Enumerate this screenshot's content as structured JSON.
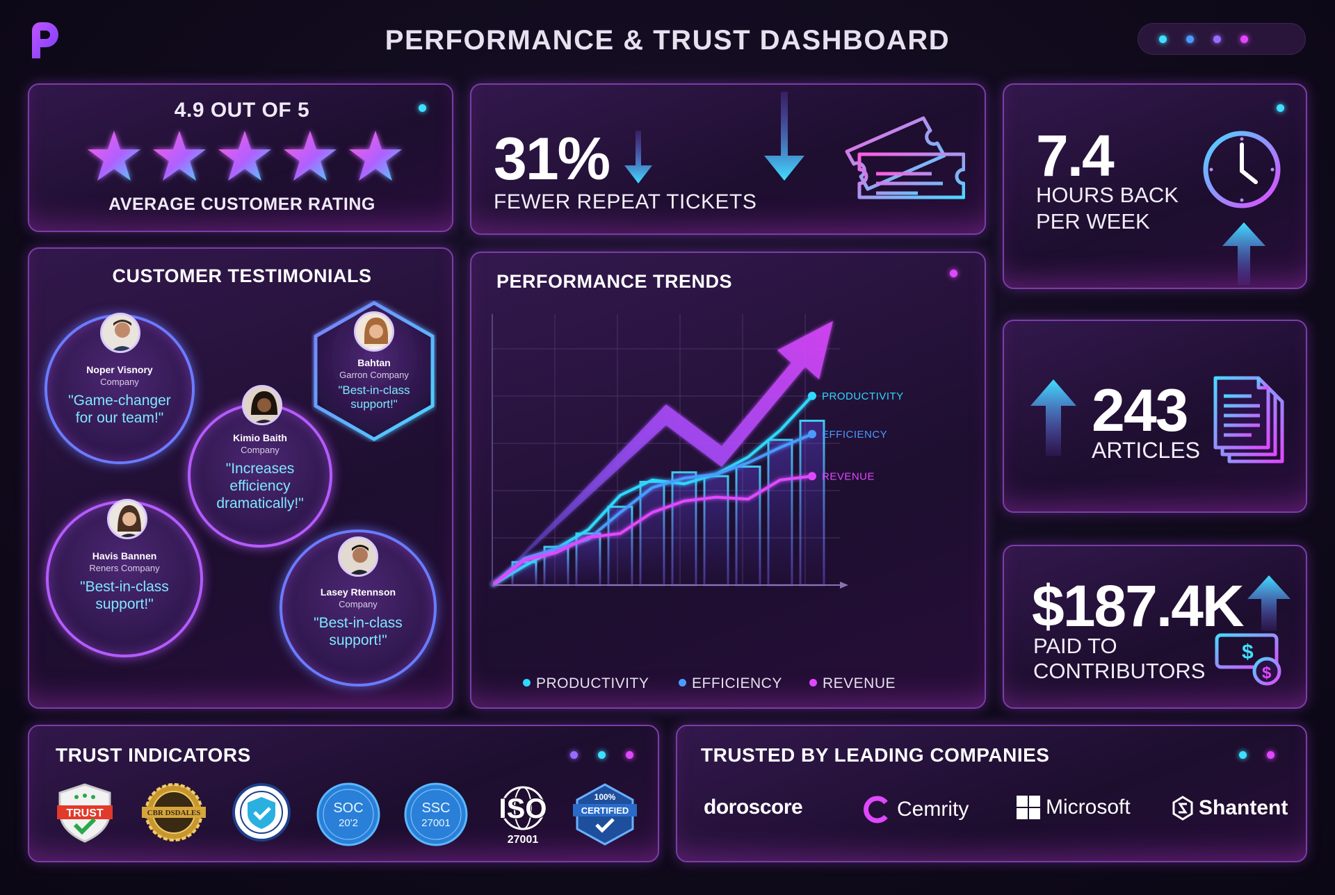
{
  "header": {
    "title": "PERFORMANCE & TRUST DASHBOARD",
    "logo_icon": "brand-p-logo-icon",
    "pager_dots": [
      "#3fe0ff",
      "#4a9bff",
      "#9a6bff",
      "#e048ff"
    ]
  },
  "rating": {
    "value": "4.9 OUT OF 5",
    "label": "AVERAGE CUSTOMER RATING",
    "stars": 5
  },
  "tickets": {
    "value": "31%",
    "label": "FEWER REPEAT TICKETS",
    "icon": "ticket-icon"
  },
  "hours": {
    "value": "7.4",
    "label": "HOURS BACK PER WEEK",
    "icon": "clock-icon"
  },
  "articles": {
    "value": "243",
    "label": "ARTICLES",
    "icon": "documents-icon"
  },
  "paid": {
    "value": "$187.4K",
    "label": "PAID TO CONTRIBUTORS",
    "icon": "money-icon"
  },
  "testimonials": {
    "title": "CUSTOMER TESTIMONIALS",
    "items": [
      {
        "name": "Noper Visnory",
        "company": "Company",
        "quote": "\"Game-changer for our team!\""
      },
      {
        "name": "Bahtan",
        "company": "Garron Company",
        "quote": "\"Best-in-class support!\""
      },
      {
        "name": "Kimio Baith",
        "company": "Company",
        "quote": "\"Increases efficiency dramatically!\""
      },
      {
        "name": "Havis Bannen",
        "company": "Reners Company",
        "quote": "\"Best-in-class support!\""
      },
      {
        "name": "Lasey Rtennson",
        "company": "Company",
        "quote": "\"Best-in-class support!\""
      }
    ]
  },
  "trends": {
    "title": "PERFORMANCE TRENDS",
    "legend": [
      "PRODUCTIVITY",
      "EFFICIENCY",
      "REVENUE"
    ]
  },
  "chart_data": {
    "type": "line",
    "title": "PERFORMANCE TRENDS",
    "x": [
      0,
      1,
      2,
      3,
      4,
      5,
      6,
      7,
      8,
      9,
      10
    ],
    "bars": [
      0,
      12,
      20,
      27,
      41,
      54,
      59,
      57,
      62,
      76,
      86
    ],
    "series": [
      {
        "name": "PRODUCTIVITY",
        "color": "#2fd8ff",
        "values": [
          0,
          10,
          19,
          29,
          47,
          55,
          53,
          58,
          67,
          81,
          99
        ]
      },
      {
        "name": "EFFICIENCY",
        "color": "#4a9bff",
        "values": [
          0,
          14,
          19,
          24,
          38,
          51,
          56,
          58,
          64,
          72,
          79
        ]
      },
      {
        "name": "REVENUE",
        "color": "#e048ff",
        "values": [
          0,
          13,
          17,
          25,
          27,
          38,
          44,
          46,
          45,
          55,
          57
        ]
      }
    ],
    "ylim": [
      0,
      120
    ],
    "grid": true,
    "legend_position": "bottom",
    "trend_arrow": true
  },
  "trust": {
    "title": "TRUST INDICATORS",
    "badges": [
      {
        "icon": "trust-shield-icon",
        "text": "TRUST"
      },
      {
        "icon": "gold-seal-icon",
        "text": "CBR DSDALES"
      },
      {
        "icon": "verified-seal-icon",
        "text": ""
      },
      {
        "icon": "soc-badge-icon",
        "text": "SOC",
        "sub": "20'2"
      },
      {
        "icon": "ssc-badge-icon",
        "text": "SSC",
        "sub": "27001"
      },
      {
        "icon": "iso-badge-icon",
        "text": "ISO",
        "sub": "27001"
      },
      {
        "icon": "certified-badge-icon",
        "text": "CERTIFIED",
        "sub": "100%"
      }
    ]
  },
  "companies": {
    "title": "TRUSTED BY LEADING COMPANIES",
    "items": [
      {
        "name": "doroscore",
        "icon": "doroscore-logo-icon"
      },
      {
        "name": "Cemrity",
        "icon": "cemrity-logo-icon"
      },
      {
        "name": "Microsoft",
        "icon": "microsoft-logo-icon"
      },
      {
        "name": "Shantent",
        "icon": "shantent-logo-icon"
      }
    ]
  },
  "colors": {
    "accent_cyan": "#3fe0ff",
    "accent_magenta": "#e048ff",
    "accent_purple": "#9a6bff",
    "background": "#110b1d"
  }
}
